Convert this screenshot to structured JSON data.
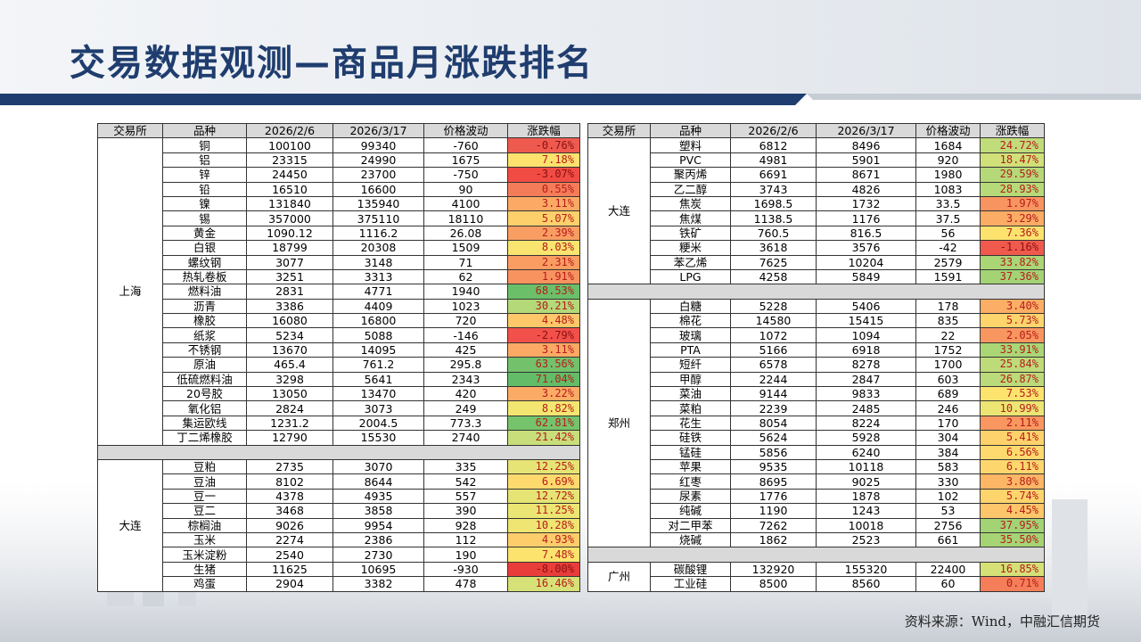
{
  "title": "交易数据观测—商品月涨跌排名",
  "source": "资料来源：Wind，中融汇信期货",
  "headers": [
    "交易所",
    "品种",
    "2026/2/6",
    "2026/3/17",
    "价格波动",
    "涨跌幅"
  ],
  "left": [
    {
      "exchange": "上海",
      "rows": [
        [
          "铜",
          "100100",
          "99340",
          "-760",
          "-0.76%",
          "#ef5a4f"
        ],
        [
          "铝",
          "23315",
          "24990",
          "1675",
          "7.18%",
          "#fde26e"
        ],
        [
          "锌",
          "24450",
          "23700",
          "-750",
          "-3.07%",
          "#f04c44"
        ],
        [
          "铅",
          "16510",
          "16600",
          "90",
          "0.55%",
          "#f47c58"
        ],
        [
          "镍",
          "131840",
          "135940",
          "4100",
          "3.11%",
          "#fba964"
        ],
        [
          "锡",
          "357000",
          "375110",
          "18110",
          "5.07%",
          "#fdd06c"
        ],
        [
          "黄金",
          "1090.12",
          "1116.2",
          "26.08",
          "2.39%",
          "#f99e62"
        ],
        [
          "白银",
          "18799",
          "20308",
          "1509",
          "8.03%",
          "#f9e470"
        ],
        [
          "螺纹钢",
          "3077",
          "3148",
          "71",
          "2.31%",
          "#f99d62"
        ],
        [
          "热轧卷板",
          "3251",
          "3313",
          "62",
          "1.91%",
          "#f8935f"
        ],
        [
          "燃料油",
          "2831",
          "4771",
          "1940",
          "68.53%",
          "#6bbf69"
        ],
        [
          "沥青",
          "3386",
          "4409",
          "1023",
          "30.21%",
          "#b3d978"
        ],
        [
          "橡胶",
          "16080",
          "16800",
          "720",
          "4.48%",
          "#fdc76a"
        ],
        [
          "纸浆",
          "5234",
          "5088",
          "-146",
          "-2.79%",
          "#f2504a"
        ],
        [
          "不锈钢",
          "13670",
          "14095",
          "425",
          "3.11%",
          "#fba964"
        ],
        [
          "原油",
          "465.4",
          "761.2",
          "295.8",
          "63.56%",
          "#73c26b"
        ],
        [
          "低硫燃料油",
          "3298",
          "5641",
          "2343",
          "71.04%",
          "#63bc67"
        ],
        [
          "20号胶",
          "13050",
          "13470",
          "420",
          "3.22%",
          "#fbab65"
        ],
        [
          "氧化铝",
          "2824",
          "3073",
          "249",
          "8.82%",
          "#f3e670"
        ],
        [
          "集运欧线",
          "1231.2",
          "2004.5",
          "773.3",
          "62.81%",
          "#75c36b"
        ],
        [
          "丁二烯橡胶",
          "12790",
          "15530",
          "2740",
          "21.42%",
          "#c8de7b"
        ]
      ]
    },
    {
      "exchange": "大连",
      "rows": [
        [
          "豆粕",
          "2735",
          "3070",
          "335",
          "12.25%",
          "#e6e474"
        ],
        [
          "豆油",
          "8102",
          "8644",
          "542",
          "6.69%",
          "#feda6e"
        ],
        [
          "豆一",
          "4378",
          "4935",
          "557",
          "12.72%",
          "#e5e474"
        ],
        [
          "豆二",
          "3468",
          "3858",
          "390",
          "11.25%",
          "#ebe573"
        ],
        [
          "棕榈油",
          "9026",
          "9954",
          "928",
          "10.28%",
          "#eee572"
        ],
        [
          "玉米",
          "2274",
          "2386",
          "112",
          "4.93%",
          "#fdcd6b"
        ],
        [
          "玉米淀粉",
          "2540",
          "2730",
          "190",
          "7.48%",
          "#fce36e"
        ],
        [
          "生猪",
          "11625",
          "10695",
          "-930",
          "-8.00%",
          "#e93d3b"
        ],
        [
          "鸡蛋",
          "2904",
          "3382",
          "478",
          "16.46%",
          "#d6e177"
        ]
      ]
    }
  ],
  "right": [
    {
      "exchange": "大连",
      "rows": [
        [
          "塑料",
          "6812",
          "8496",
          "1684",
          "24.72%",
          "#c1dc7a"
        ],
        [
          "PVC",
          "4981",
          "5901",
          "920",
          "18.47%",
          "#d1e078"
        ],
        [
          "聚丙烯",
          "6691",
          "8671",
          "1980",
          "29.59%",
          "#b5d978"
        ],
        [
          "乙二醇",
          "3743",
          "4826",
          "1083",
          "28.93%",
          "#b7da78"
        ],
        [
          "焦炭",
          "1698.5",
          "1732",
          "33.5",
          "1.97%",
          "#f8945f"
        ],
        [
          "焦煤",
          "1138.5",
          "1176",
          "37.5",
          "3.29%",
          "#fbac65"
        ],
        [
          "铁矿",
          "760.5",
          "816.5",
          "56",
          "7.36%",
          "#fde36e"
        ],
        [
          "粳米",
          "3618",
          "3576",
          "-42",
          "-1.16%",
          "#f05a4d"
        ],
        [
          "苯乙烯",
          "7625",
          "10204",
          "2579",
          "33.82%",
          "#aad676"
        ],
        [
          "LPG",
          "4258",
          "5849",
          "1591",
          "37.36%",
          "#a3d375"
        ]
      ]
    },
    {
      "exchange": "郑州",
      "rows": [
        [
          "白糖",
          "5228",
          "5406",
          "178",
          "3.40%",
          "#fbae65"
        ],
        [
          "棉花",
          "14580",
          "15415",
          "835",
          "5.73%",
          "#fed46d"
        ],
        [
          "玻璃",
          "1072",
          "1094",
          "22",
          "2.05%",
          "#f8965f"
        ],
        [
          "PTA",
          "5166",
          "6918",
          "1752",
          "33.91%",
          "#aad676"
        ],
        [
          "短纤",
          "6578",
          "8278",
          "1700",
          "25.84%",
          "#bedb79"
        ],
        [
          "甲醇",
          "2244",
          "2847",
          "603",
          "26.87%",
          "#bbda79"
        ],
        [
          "菜油",
          "9144",
          "9833",
          "689",
          "7.53%",
          "#fce36e"
        ],
        [
          "菜粕",
          "2239",
          "2485",
          "246",
          "10.99%",
          "#ece573"
        ],
        [
          "花生",
          "8054",
          "8224",
          "170",
          "2.11%",
          "#f8975f"
        ],
        [
          "硅铁",
          "5624",
          "5928",
          "304",
          "5.41%",
          "#fdd26c"
        ],
        [
          "锰硅",
          "5856",
          "6240",
          "384",
          "6.56%",
          "#feda6e"
        ],
        [
          "苹果",
          "9535",
          "10118",
          "583",
          "6.11%",
          "#fdd76d"
        ],
        [
          "红枣",
          "8695",
          "9025",
          "330",
          "3.80%",
          "#fcb666"
        ],
        [
          "尿素",
          "1776",
          "1878",
          "102",
          "5.74%",
          "#fed46d"
        ],
        [
          "纯碱",
          "1190",
          "1243",
          "53",
          "4.45%",
          "#fdc66a"
        ],
        [
          "对二甲苯",
          "7262",
          "10018",
          "2756",
          "37.95%",
          "#a2d375"
        ],
        [
          "烧碱",
          "1862",
          "2523",
          "661",
          "35.50%",
          "#a6d475"
        ]
      ]
    },
    {
      "exchange": "广州",
      "rows": [
        [
          "碳酸锂",
          "132920",
          "155320",
          "22400",
          "16.85%",
          "#d5e077"
        ],
        [
          "工业硅",
          "8500",
          "8560",
          "60",
          "0.71%",
          "#f47e59"
        ]
      ]
    }
  ]
}
